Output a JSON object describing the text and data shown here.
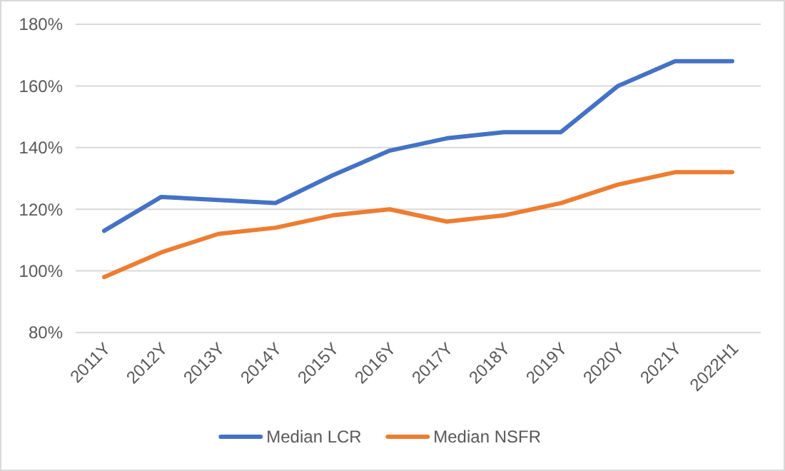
{
  "chart_data": {
    "type": "line",
    "categories": [
      "2011Y",
      "2012Y",
      "2013Y",
      "2014Y",
      "2015Y",
      "2016Y",
      "2017Y",
      "2018Y",
      "2019Y",
      "2020Y",
      "2021Y",
      "2022H1"
    ],
    "series": [
      {
        "name": "Median LCR",
        "color": "#4472c4",
        "values": [
          113,
          124,
          123,
          122,
          131,
          139,
          143,
          145,
          145,
          160,
          168,
          168
        ]
      },
      {
        "name": "Median NSFR",
        "color": "#ed7d31",
        "values": [
          98,
          106,
          112,
          114,
          118,
          120,
          116,
          118,
          122,
          128,
          132,
          132
        ]
      }
    ],
    "ylim": [
      80,
      180
    ],
    "yticks": [
      {
        "value": 80,
        "label": "80%"
      },
      {
        "value": 100,
        "label": "100%"
      },
      {
        "value": 120,
        "label": "120%"
      },
      {
        "value": 140,
        "label": "140%"
      },
      {
        "value": 160,
        "label": "160%"
      },
      {
        "value": 180,
        "label": "180%"
      }
    ],
    "grid": "y",
    "legend": "bottom",
    "marker": "none",
    "line_style": "solid"
  }
}
